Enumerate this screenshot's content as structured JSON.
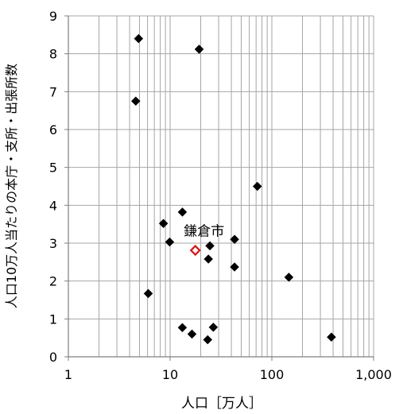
{
  "chart_data": {
    "type": "scatter",
    "title": "",
    "xlabel": "人口［万人］",
    "ylabel": "人口10万人当たりの本庁・支所・出張所数",
    "x_scale": "log",
    "xlim": [
      1,
      1000
    ],
    "ylim": [
      0,
      9
    ],
    "x_ticks": [
      1,
      10,
      100,
      1000
    ],
    "x_tick_labels": [
      "1",
      "10",
      "100",
      "1,000"
    ],
    "y_ticks": [
      0,
      1,
      2,
      3,
      4,
      5,
      6,
      7,
      8,
      9
    ],
    "y_tick_labels": [
      "0",
      "1",
      "2",
      "3",
      "4",
      "5",
      "6",
      "7",
      "8",
      "9"
    ],
    "grid": true,
    "legend": "none",
    "series": [
      {
        "marker": "diamond",
        "color": "#000000",
        "points": [
          {
            "x": 4.9,
            "y": 8.4
          },
          {
            "x": 4.6,
            "y": 6.75
          },
          {
            "x": 19.3,
            "y": 8.12
          },
          {
            "x": 72,
            "y": 4.5
          },
          {
            "x": 13.2,
            "y": 3.82
          },
          {
            "x": 8.6,
            "y": 3.52
          },
          {
            "x": 9.9,
            "y": 3.03
          },
          {
            "x": 24.6,
            "y": 2.93
          },
          {
            "x": 43,
            "y": 3.1
          },
          {
            "x": 23.8,
            "y": 2.58
          },
          {
            "x": 43,
            "y": 2.37
          },
          {
            "x": 147,
            "y": 2.1
          },
          {
            "x": 6.1,
            "y": 1.67
          },
          {
            "x": 13.2,
            "y": 0.77
          },
          {
            "x": 16.4,
            "y": 0.6
          },
          {
            "x": 26.6,
            "y": 0.78
          },
          {
            "x": 23.4,
            "y": 0.45
          },
          {
            "x": 385,
            "y": 0.52
          }
        ]
      },
      {
        "marker": "diamond-open",
        "color": "#e01010",
        "points": [
          {
            "x": 17.7,
            "y": 2.81
          }
        ]
      }
    ],
    "annotations": [
      {
        "text": "鎌倉市",
        "x": 17.7,
        "y": 3.2
      }
    ]
  }
}
